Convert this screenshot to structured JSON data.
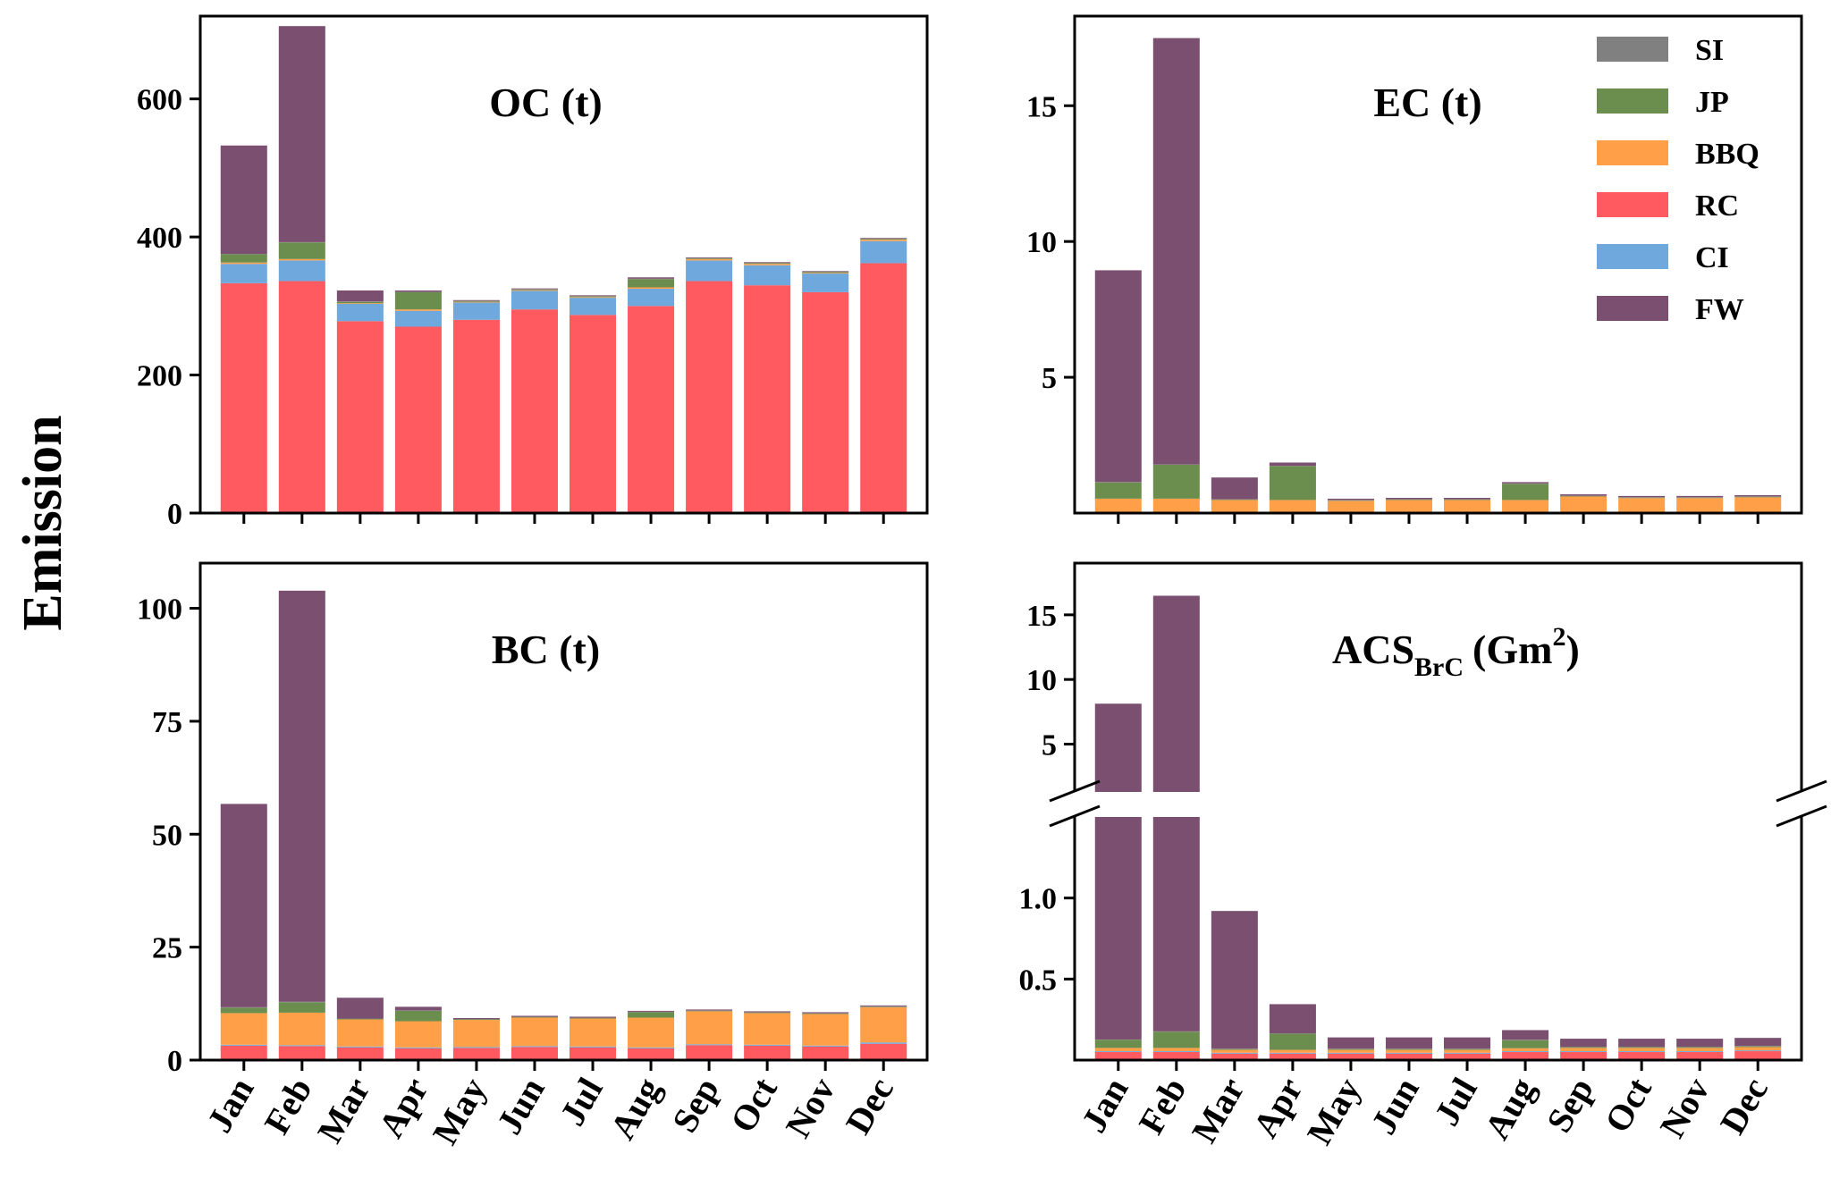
{
  "chart_data": {
    "type": "bar",
    "ylabel": "Emission",
    "legend_position": "top-right",
    "stack_order": [
      "RC",
      "CI",
      "BBQ",
      "JP",
      "SI",
      "FW"
    ],
    "legend": [
      {
        "key": "SI",
        "label": "SI",
        "color": "#808080"
      },
      {
        "key": "JP",
        "label": "JP",
        "color": "#6b8e4e"
      },
      {
        "key": "BBQ",
        "label": "BBQ",
        "color": "#ffa048"
      },
      {
        "key": "RC",
        "label": "RC",
        "color": "#ff5a5f"
      },
      {
        "key": "CI",
        "label": "CI",
        "color": "#6fa8dc"
      },
      {
        "key": "FW",
        "label": "FW",
        "color": "#7b4f6f"
      }
    ],
    "categories": [
      "Jan",
      "Feb",
      "Mar",
      "Apr",
      "May",
      "Jun",
      "Jul",
      "Aug",
      "Sep",
      "Oct",
      "Nov",
      "Dec"
    ],
    "panels": [
      {
        "id": "oc",
        "title": "OC (t)",
        "ylim": [
          0,
          720
        ],
        "yticks": [
          0,
          200,
          400,
          600
        ],
        "ytick_labels": [
          "0",
          "200",
          "400",
          "600"
        ],
        "series": {
          "RC": [
            333,
            336,
            278,
            270,
            280,
            295,
            287,
            300,
            336,
            330,
            320,
            362
          ],
          "CI": [
            28,
            30,
            25,
            23,
            25,
            27,
            25,
            25,
            30,
            29,
            27,
            32
          ],
          "BBQ": [
            2,
            2,
            1,
            2,
            1,
            1,
            1,
            2,
            2,
            2,
            1,
            2
          ],
          "JP": [
            12,
            24,
            2,
            25,
            1,
            1,
            1,
            12,
            1,
            1,
            1,
            1
          ],
          "SI": [
            0.5,
            0.5,
            0.5,
            0.5,
            0.5,
            0.5,
            0.5,
            0.5,
            0.5,
            0.5,
            0.5,
            0.5
          ],
          "FW": [
            157,
            313,
            16,
            2,
            1,
            1,
            1,
            2,
            1,
            1,
            1,
            1
          ]
        }
      },
      {
        "id": "ec",
        "title": "EC (t)",
        "ylim": [
          0,
          18.3
        ],
        "yticks": [
          5,
          10,
          15
        ],
        "ytick_labels": [
          "5",
          "10",
          "15"
        ],
        "series": {
          "RC": [
            0.02,
            0.02,
            0.02,
            0.02,
            0.02,
            0.02,
            0.02,
            0.02,
            0.02,
            0.02,
            0.02,
            0.02
          ],
          "CI": [
            0.01,
            0.01,
            0.01,
            0.01,
            0.01,
            0.01,
            0.01,
            0.01,
            0.01,
            0.01,
            0.01,
            0.01
          ],
          "BBQ": [
            0.5,
            0.5,
            0.45,
            0.45,
            0.42,
            0.45,
            0.45,
            0.45,
            0.58,
            0.52,
            0.52,
            0.55
          ],
          "JP": [
            0.6,
            1.25,
            0.02,
            1.25,
            0.02,
            0.02,
            0.02,
            0.6,
            0.02,
            0.02,
            0.02,
            0.02
          ],
          "SI": [
            0.01,
            0.01,
            0.01,
            0.01,
            0.01,
            0.01,
            0.01,
            0.01,
            0.01,
            0.01,
            0.01,
            0.01
          ],
          "FW": [
            7.8,
            15.7,
            0.8,
            0.12,
            0.05,
            0.05,
            0.05,
            0.05,
            0.05,
            0.05,
            0.05,
            0.05
          ]
        }
      },
      {
        "id": "bc",
        "title": "BC (t)",
        "ylim": [
          0,
          110
        ],
        "yticks": [
          0,
          25,
          50,
          75,
          100
        ],
        "ytick_labels": [
          "0",
          "25",
          "50",
          "75",
          "100"
        ],
        "series": {
          "BBQ": [
            7,
            7.2,
            6,
            5.8,
            6,
            6.3,
            6.2,
            6.6,
            7.3,
            7,
            7,
            7.8
          ],
          "RC": [
            3.2,
            3.1,
            2.8,
            2.6,
            2.7,
            2.9,
            2.8,
            2.6,
            3.3,
            3.2,
            3,
            3.6
          ],
          "CI": [
            0.2,
            0.2,
            0.2,
            0.2,
            0.2,
            0.2,
            0.2,
            0.2,
            0.2,
            0.2,
            0.2,
            0.3
          ],
          "JP": [
            1.2,
            2.3,
            0.1,
            2.3,
            0.1,
            0.1,
            0.1,
            1.2,
            0.1,
            0.1,
            0.1,
            0.1
          ],
          "SI": [
            0.1,
            0.1,
            0.1,
            0.1,
            0.1,
            0.1,
            0.1,
            0.1,
            0.1,
            0.1,
            0.1,
            0.1
          ],
          "FW": [
            45,
            91,
            4.6,
            0.8,
            0.2,
            0.2,
            0.2,
            0.2,
            0.2,
            0.2,
            0.2,
            0.2
          ]
        }
      },
      {
        "id": "acs",
        "title": "ACS",
        "title_subscript": "BrC",
        "title_suffix": "(Gm",
        "title_superscript": "2",
        "title_close": ")",
        "broken_axis": true,
        "upper_ylim": [
          1.3,
          19
        ],
        "upper_yticks": [
          5,
          10,
          15
        ],
        "upper_ytick_labels": [
          "5",
          "10",
          "15"
        ],
        "lower_ylim": [
          0,
          1.5
        ],
        "lower_yticks": [
          0.5,
          1.0
        ],
        "lower_ytick_labels": [
          "0.5",
          "1.0"
        ],
        "series": {
          "JP": [
            0.05,
            0.1,
            0.005,
            0.1,
            0.005,
            0.005,
            0.005,
            0.05,
            0.005,
            0.005,
            0.005,
            0.005
          ],
          "BBQ": [
            0.02,
            0.02,
            0.018,
            0.018,
            0.018,
            0.018,
            0.018,
            0.018,
            0.02,
            0.02,
            0.02,
            0.02
          ],
          "RC": [
            0.05,
            0.05,
            0.04,
            0.04,
            0.04,
            0.04,
            0.04,
            0.05,
            0.05,
            0.05,
            0.05,
            0.055
          ],
          "CI": [
            0.005,
            0.005,
            0.005,
            0.005,
            0.005,
            0.005,
            0.005,
            0.005,
            0.005,
            0.005,
            0.005,
            0.005
          ],
          "SI": [
            0.002,
            0.002,
            0.002,
            0.002,
            0.002,
            0.002,
            0.002,
            0.002,
            0.002,
            0.002,
            0.002,
            0.002
          ],
          "FW": [
            8.0,
            16.3,
            0.85,
            0.18,
            0.07,
            0.07,
            0.07,
            0.06,
            0.05,
            0.05,
            0.05,
            0.05
          ]
        }
      }
    ]
  }
}
